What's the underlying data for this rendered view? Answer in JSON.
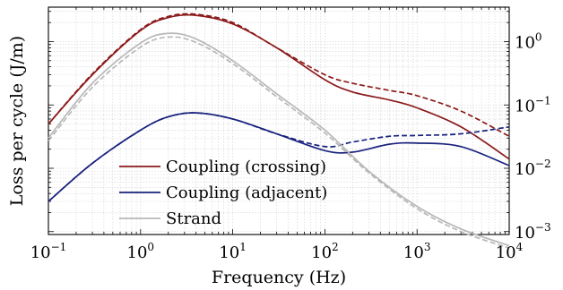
{
  "chart_data": {
    "type": "line",
    "xlabel": "Frequency (Hz)",
    "ylabel": "Loss per cycle (J/m)",
    "x_scale": "log",
    "y_scale": "log",
    "xlim": [
      0.1,
      10000
    ],
    "ylim": [
      0.0009,
      3.5
    ],
    "x_ticks": [
      {
        "base": "10",
        "exp": "−1",
        "value": 0.1
      },
      {
        "base": "10",
        "exp": "0",
        "value": 1
      },
      {
        "base": "10",
        "exp": "1",
        "value": 10
      },
      {
        "base": "10",
        "exp": "2",
        "value": 100
      },
      {
        "base": "10",
        "exp": "3",
        "value": 1000
      },
      {
        "base": "10",
        "exp": "4",
        "value": 10000
      }
    ],
    "y_ticks": [
      {
        "base": "10",
        "exp": "0",
        "value": 1
      },
      {
        "base": "10",
        "exp": "−1",
        "value": 0.1
      },
      {
        "base": "10",
        "exp": "−2",
        "value": 0.01
      },
      {
        "base": "10",
        "exp": "−3",
        "value": 0.001
      }
    ],
    "grid": true,
    "legend_position": "bottom-left",
    "series": [
      {
        "name": "Coupling (crossing)",
        "color": "#8b1a1a",
        "style": "solid",
        "x": [
          0.1,
          0.3,
          1,
          2,
          4,
          10,
          30,
          100,
          200,
          500,
          1000,
          3000,
          10000
        ],
        "y": [
          0.05,
          0.3,
          1.5,
          2.4,
          2.6,
          1.9,
          0.8,
          0.25,
          0.16,
          0.12,
          0.09,
          0.045,
          0.014
        ]
      },
      {
        "name": "Coupling (crossing) dashed",
        "color": "#8b1a1a",
        "style": "dashed",
        "x": [
          0.1,
          0.3,
          1,
          2,
          4,
          10,
          30,
          100,
          200,
          500,
          1000,
          3000,
          10000
        ],
        "y": [
          0.05,
          0.31,
          1.55,
          2.5,
          2.7,
          2.0,
          0.8,
          0.3,
          0.22,
          0.17,
          0.14,
          0.08,
          0.032
        ]
      },
      {
        "name": "Coupling (adjacent)",
        "color": "#1a237e",
        "style": "solid",
        "x": [
          0.1,
          0.3,
          1,
          2,
          4,
          10,
          30,
          100,
          200,
          500,
          1000,
          3000,
          10000
        ],
        "y": [
          0.003,
          0.012,
          0.04,
          0.065,
          0.075,
          0.06,
          0.035,
          0.019,
          0.018,
          0.024,
          0.025,
          0.022,
          0.011
        ]
      },
      {
        "name": "Coupling (adjacent) dashed",
        "color": "#1a237e",
        "style": "dashed",
        "x": [
          0.1,
          0.3,
          1,
          2,
          4,
          10,
          30,
          100,
          200,
          500,
          1000,
          3000,
          10000
        ],
        "y": [
          0.003,
          0.012,
          0.04,
          0.065,
          0.075,
          0.06,
          0.035,
          0.022,
          0.026,
          0.032,
          0.033,
          0.035,
          0.045
        ]
      },
      {
        "name": "Strand",
        "color": "#b8b8b8",
        "style": "solid",
        "x": [
          0.1,
          0.3,
          1,
          2,
          4,
          10,
          30,
          100,
          300,
          1000,
          3000,
          10000
        ],
        "y": [
          0.03,
          0.22,
          0.95,
          1.35,
          1.1,
          0.5,
          0.15,
          0.04,
          0.009,
          0.0025,
          0.0011,
          0.0006
        ]
      },
      {
        "name": "Strand dashed",
        "color": "#b8b8b8",
        "style": "dashed",
        "x": [
          0.1,
          0.3,
          1,
          2,
          4,
          10,
          30,
          100,
          300,
          1000,
          3000,
          10000
        ],
        "y": [
          0.027,
          0.19,
          0.82,
          1.18,
          0.97,
          0.45,
          0.135,
          0.036,
          0.0085,
          0.0023,
          0.001,
          0.00055
        ]
      }
    ],
    "legend": [
      {
        "label": "Coupling (crossing)",
        "color": "#8b1a1a"
      },
      {
        "label": "Coupling (adjacent)",
        "color": "#1a237e"
      },
      {
        "label": "Strand",
        "color": "#b8b8b8"
      }
    ]
  }
}
